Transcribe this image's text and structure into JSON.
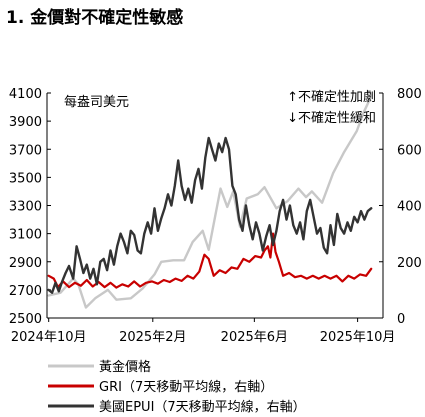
{
  "chart_data": {
    "type": "line",
    "title": "1. 金價對不確定性敏感",
    "unit_label": "每盎司美元",
    "annotation_up": "↑不確定性加劇",
    "annotation_down": "↓不確定性緩和",
    "y_left": {
      "min": 2500,
      "max": 4100,
      "ticks": [
        "2500",
        "2700",
        "2900",
        "3100",
        "3300",
        "3500",
        "3700",
        "3900",
        "4100"
      ]
    },
    "y_right": {
      "min": 0,
      "max": 800,
      "ticks": [
        "0",
        "200",
        "400",
        "600",
        "800"
      ]
    },
    "x_ticks": [
      "2024年10月",
      "2025年2月",
      "2025年6月",
      "2025年10月"
    ],
    "x_tick_dates": [
      "2024-10-01",
      "2025-02-01",
      "2025-06-01",
      "2025-10-01"
    ],
    "x_range": [
      "2024-09-29",
      "2025-10-31"
    ],
    "grid": false,
    "legend_position": "bottom",
    "series": [
      {
        "name": "黃金價格",
        "axis": "left",
        "color": "#c8c8c8",
        "points": [
          [
            "2024-10-01",
            2660
          ],
          [
            "2024-10-15",
            2680
          ],
          [
            "2024-10-30",
            2780
          ],
          [
            "2024-11-05",
            2740
          ],
          [
            "2024-11-14",
            2575
          ],
          [
            "2024-11-25",
            2640
          ],
          [
            "2024-12-10",
            2700
          ],
          [
            "2024-12-20",
            2630
          ],
          [
            "2025-01-06",
            2640
          ],
          [
            "2025-01-20",
            2710
          ],
          [
            "2025-02-03",
            2810
          ],
          [
            "2025-02-11",
            2900
          ],
          [
            "2025-02-25",
            2910
          ],
          [
            "2025-03-10",
            2910
          ],
          [
            "2025-03-20",
            3040
          ],
          [
            "2025-04-01",
            3120
          ],
          [
            "2025-04-08",
            2985
          ],
          [
            "2025-04-22",
            3420
          ],
          [
            "2025-04-30",
            3290
          ],
          [
            "2025-05-07",
            3400
          ],
          [
            "2025-05-15",
            3150
          ],
          [
            "2025-05-23",
            3350
          ],
          [
            "2025-06-05",
            3380
          ],
          [
            "2025-06-13",
            3430
          ],
          [
            "2025-06-27",
            3280
          ],
          [
            "2025-07-10",
            3330
          ],
          [
            "2025-07-23",
            3420
          ],
          [
            "2025-08-01",
            3360
          ],
          [
            "2025-08-08",
            3400
          ],
          [
            "2025-08-20",
            3320
          ],
          [
            "2025-09-02",
            3530
          ],
          [
            "2025-09-15",
            3680
          ],
          [
            "2025-09-30",
            3830
          ],
          [
            "2025-10-08",
            3960
          ],
          [
            "2025-10-15",
            4050
          ],
          [
            "2025-10-17",
            4090
          ]
        ]
      },
      {
        "name": "GRI（7天移動平均線，右軸）",
        "axis": "right",
        "color": "#c80000",
        "points": [
          [
            "2024-10-01",
            150
          ],
          [
            "2024-10-07",
            140
          ],
          [
            "2024-10-12",
            110
          ],
          [
            "2024-10-18",
            130
          ],
          [
            "2024-10-25",
            110
          ],
          [
            "2024-11-01",
            125
          ],
          [
            "2024-11-08",
            115
          ],
          [
            "2024-11-15",
            135
          ],
          [
            "2024-11-22",
            112
          ],
          [
            "2024-11-29",
            128
          ],
          [
            "2024-12-06",
            110
          ],
          [
            "2024-12-13",
            125
          ],
          [
            "2024-12-20",
            108
          ],
          [
            "2024-12-27",
            120
          ],
          [
            "2025-01-03",
            112
          ],
          [
            "2025-01-10",
            130
          ],
          [
            "2025-01-17",
            112
          ],
          [
            "2025-01-24",
            125
          ],
          [
            "2025-01-31",
            130
          ],
          [
            "2025-02-07",
            122
          ],
          [
            "2025-02-14",
            135
          ],
          [
            "2025-02-21",
            128
          ],
          [
            "2025-02-28",
            140
          ],
          [
            "2025-03-07",
            132
          ],
          [
            "2025-03-14",
            150
          ],
          [
            "2025-03-21",
            140
          ],
          [
            "2025-03-28",
            165
          ],
          [
            "2025-04-03",
            225
          ],
          [
            "2025-04-08",
            210
          ],
          [
            "2025-04-14",
            150
          ],
          [
            "2025-04-21",
            170
          ],
          [
            "2025-04-28",
            160
          ],
          [
            "2025-05-05",
            180
          ],
          [
            "2025-05-12",
            175
          ],
          [
            "2025-05-19",
            210
          ],
          [
            "2025-05-26",
            200
          ],
          [
            "2025-06-02",
            220
          ],
          [
            "2025-06-09",
            215
          ],
          [
            "2025-06-13",
            240
          ],
          [
            "2025-06-17",
            255
          ],
          [
            "2025-06-20",
            215
          ],
          [
            "2025-06-23",
            300
          ],
          [
            "2025-06-26",
            235
          ],
          [
            "2025-06-30",
            200
          ],
          [
            "2025-07-05",
            150
          ],
          [
            "2025-07-12",
            160
          ],
          [
            "2025-07-19",
            145
          ],
          [
            "2025-07-26",
            150
          ],
          [
            "2025-08-02",
            140
          ],
          [
            "2025-08-09",
            150
          ],
          [
            "2025-08-16",
            140
          ],
          [
            "2025-08-23",
            150
          ],
          [
            "2025-08-30",
            140
          ],
          [
            "2025-09-06",
            150
          ],
          [
            "2025-09-13",
            130
          ],
          [
            "2025-09-20",
            150
          ],
          [
            "2025-09-27",
            140
          ],
          [
            "2025-10-04",
            155
          ],
          [
            "2025-10-11",
            150
          ],
          [
            "2025-10-17",
            175
          ]
        ]
      },
      {
        "name": "美國EPUI（7天移動平均線，右軸）",
        "axis": "right",
        "color": "#333333",
        "points": [
          [
            "2024-10-01",
            100
          ],
          [
            "2024-10-05",
            90
          ],
          [
            "2024-10-09",
            125
          ],
          [
            "2024-10-13",
            95
          ],
          [
            "2024-10-17",
            130
          ],
          [
            "2024-10-21",
            160
          ],
          [
            "2024-10-25",
            185
          ],
          [
            "2024-10-30",
            140
          ],
          [
            "2024-11-03",
            255
          ],
          [
            "2024-11-07",
            210
          ],
          [
            "2024-11-11",
            160
          ],
          [
            "2024-11-15",
            190
          ],
          [
            "2024-11-19",
            140
          ],
          [
            "2024-11-23",
            175
          ],
          [
            "2024-11-27",
            120
          ],
          [
            "2024-12-01",
            200
          ],
          [
            "2024-12-05",
            210
          ],
          [
            "2024-12-09",
            170
          ],
          [
            "2024-12-13",
            240
          ],
          [
            "2024-12-17",
            190
          ],
          [
            "2024-12-21",
            255
          ],
          [
            "2024-12-25",
            300
          ],
          [
            "2024-12-29",
            270
          ],
          [
            "2025-01-02",
            230
          ],
          [
            "2025-01-06",
            310
          ],
          [
            "2025-01-10",
            295
          ],
          [
            "2025-01-14",
            240
          ],
          [
            "2025-01-18",
            230
          ],
          [
            "2025-01-22",
            300
          ],
          [
            "2025-01-26",
            340
          ],
          [
            "2025-01-30",
            300
          ],
          [
            "2025-02-03",
            390
          ],
          [
            "2025-02-07",
            310
          ],
          [
            "2025-02-11",
            355
          ],
          [
            "2025-02-15",
            390
          ],
          [
            "2025-02-19",
            440
          ],
          [
            "2025-02-23",
            400
          ],
          [
            "2025-02-27",
            470
          ],
          [
            "2025-03-03",
            560
          ],
          [
            "2025-03-07",
            470
          ],
          [
            "2025-03-11",
            420
          ],
          [
            "2025-03-15",
            460
          ],
          [
            "2025-03-19",
            410
          ],
          [
            "2025-03-23",
            490
          ],
          [
            "2025-03-27",
            530
          ],
          [
            "2025-03-31",
            460
          ],
          [
            "2025-04-04",
            570
          ],
          [
            "2025-04-08",
            640
          ],
          [
            "2025-04-12",
            600
          ],
          [
            "2025-04-16",
            560
          ],
          [
            "2025-04-20",
            620
          ],
          [
            "2025-04-24",
            590
          ],
          [
            "2025-04-28",
            640
          ],
          [
            "2025-05-02",
            600
          ],
          [
            "2025-05-06",
            470
          ],
          [
            "2025-05-10",
            440
          ],
          [
            "2025-05-14",
            350
          ],
          [
            "2025-05-18",
            310
          ],
          [
            "2025-05-22",
            400
          ],
          [
            "2025-05-26",
            330
          ],
          [
            "2025-05-30",
            280
          ],
          [
            "2025-06-03",
            340
          ],
          [
            "2025-06-07",
            300
          ],
          [
            "2025-06-11",
            240
          ],
          [
            "2025-06-15",
            290
          ],
          [
            "2025-06-19",
            330
          ],
          [
            "2025-06-23",
            260
          ],
          [
            "2025-06-27",
            310
          ],
          [
            "2025-07-01",
            380
          ],
          [
            "2025-07-05",
            420
          ],
          [
            "2025-07-09",
            350
          ],
          [
            "2025-07-13",
            400
          ],
          [
            "2025-07-17",
            330
          ],
          [
            "2025-07-21",
            300
          ],
          [
            "2025-07-25",
            340
          ],
          [
            "2025-07-29",
            280
          ],
          [
            "2025-08-02",
            380
          ],
          [
            "2025-08-06",
            420
          ],
          [
            "2025-08-10",
            360
          ],
          [
            "2025-08-14",
            300
          ],
          [
            "2025-08-18",
            320
          ],
          [
            "2025-08-22",
            250
          ],
          [
            "2025-08-26",
            230
          ],
          [
            "2025-08-30",
            330
          ],
          [
            "2025-09-03",
            260
          ],
          [
            "2025-09-07",
            370
          ],
          [
            "2025-09-11",
            320
          ],
          [
            "2025-09-15",
            300
          ],
          [
            "2025-09-19",
            340
          ],
          [
            "2025-09-23",
            310
          ],
          [
            "2025-09-27",
            360
          ],
          [
            "2025-10-01",
            340
          ],
          [
            "2025-10-05",
            380
          ],
          [
            "2025-10-09",
            350
          ],
          [
            "2025-10-13",
            380
          ],
          [
            "2025-10-17",
            390
          ]
        ]
      }
    ]
  }
}
